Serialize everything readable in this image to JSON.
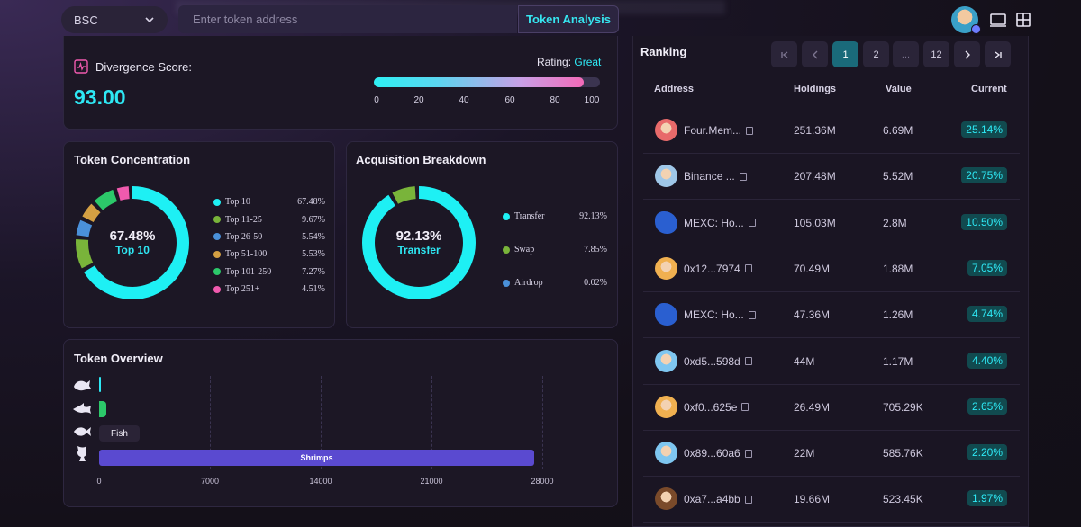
{
  "topbar": {
    "chain": "BSC",
    "address_placeholder": "Enter token address",
    "analysis_button": "Token Analysis"
  },
  "divergence": {
    "label": "Divergence Score:",
    "score": "93.00",
    "rating_label": "Rating:",
    "rating_value": "Great",
    "progress_percent": 93,
    "ticks": [
      "0",
      "20",
      "40",
      "60",
      "80",
      "100"
    ]
  },
  "concentration": {
    "title": "Token Concentration",
    "center_pct": "67.48%",
    "center_label": "Top 10",
    "items": [
      {
        "label": "Top 10",
        "pct": "67.48%",
        "value": 67.48,
        "color": "#1ef0f4"
      },
      {
        "label": "Top 11-25",
        "pct": "9.67%",
        "value": 9.67,
        "color": "#79b43a"
      },
      {
        "label": "Top 26-50",
        "pct": "5.54%",
        "value": 5.54,
        "color": "#4a90d9"
      },
      {
        "label": "Top 51-100",
        "pct": "5.53%",
        "value": 5.53,
        "color": "#d4a043"
      },
      {
        "label": "Top 101-250",
        "pct": "7.27%",
        "value": 7.27,
        "color": "#2cc86a"
      },
      {
        "label": "Top 251+",
        "pct": "4.51%",
        "value": 4.51,
        "color": "#f05aae"
      }
    ]
  },
  "acquisition": {
    "title": "Acquisition Breakdown",
    "center_pct": "92.13%",
    "center_label": "Transfer",
    "items": [
      {
        "label": "Transfer",
        "pct": "92.13%",
        "value": 92.13,
        "color": "#1ef0f4"
      },
      {
        "label": "Swap",
        "pct": "7.85%",
        "value": 7.85,
        "color": "#79b43a"
      },
      {
        "label": "Airdrop",
        "pct": "0.02%",
        "value": 0.02,
        "color": "#4a90d9"
      }
    ]
  },
  "overview": {
    "title": "Token Overview",
    "tooltip": "Fish",
    "bar_label": "Shrimps",
    "axis": [
      "0",
      "7000",
      "14000",
      "21000",
      "28000"
    ],
    "chart_data": {
      "type": "bar",
      "categories": [
        "Whales",
        "Sharks",
        "Fish",
        "Shrimps"
      ],
      "values": [
        60,
        430,
        0,
        27500
      ],
      "xlim": [
        0,
        28000
      ]
    }
  },
  "ranking": {
    "title": "Ranking",
    "pages": [
      "1",
      "2",
      "...",
      "12"
    ],
    "columns": {
      "address": "Address",
      "holdings": "Holdings",
      "value": "Value",
      "current": "Current"
    },
    "rows": [
      {
        "address": "Four.Mem...",
        "holdings": "251.36M",
        "value": "6.69M",
        "current": "25.14%",
        "avatar": "#e86a6a"
      },
      {
        "address": "Binance ...",
        "holdings": "207.48M",
        "value": "5.52M",
        "current": "20.75%",
        "avatar": "#9fc7e8"
      },
      {
        "address": "MEXC: Ho...",
        "holdings": "105.03M",
        "value": "2.8M",
        "current": "10.50%",
        "avatar": "#2a5fd0"
      },
      {
        "address": "0x12...7974",
        "holdings": "70.49M",
        "value": "1.88M",
        "current": "7.05%",
        "avatar": "#f0b050"
      },
      {
        "address": "MEXC: Ho...",
        "holdings": "47.36M",
        "value": "1.26M",
        "current": "4.74%",
        "avatar": "#2a5fd0"
      },
      {
        "address": "0xd5...598d",
        "holdings": "44M",
        "value": "1.17M",
        "current": "4.40%",
        "avatar": "#7ec6f0"
      },
      {
        "address": "0xf0...625e",
        "holdings": "26.49M",
        "value": "705.29K",
        "current": "2.65%",
        "avatar": "#f0b050"
      },
      {
        "address": "0x89...60a6",
        "holdings": "22M",
        "value": "585.76K",
        "current": "2.20%",
        "avatar": "#7ec6f0"
      },
      {
        "address": "0xa7...a4bb",
        "holdings": "19.66M",
        "value": "523.45K",
        "current": "1.97%",
        "avatar": "#7a4a2a"
      }
    ]
  }
}
